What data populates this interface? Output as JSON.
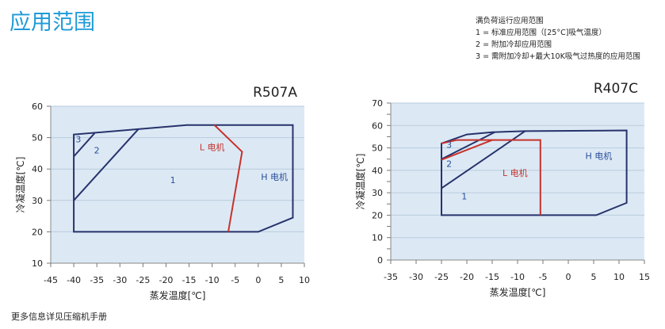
{
  "page": {
    "title": "应用范围",
    "legend_title": "满负荷运行应用范围",
    "legend_items": [
      "1 = 标准应用范围（[25°C]吸气温度）",
      "2 = 附加冷却应用范围",
      "3 = 需附加冷却+最大10K吸气过热度的应用范围"
    ],
    "footer": "更多信息详见压缩机手册"
  },
  "colors": {
    "plot_bg": "#dce9f5",
    "envelope": "#27336b",
    "l_motor": "#c8322b",
    "label_blue": "#2b4f9a",
    "title": "#1f9ad8"
  },
  "chart_data": [
    {
      "type": "line",
      "title": "R507A",
      "xlabel": "蒸发温度[℃]",
      "ylabel": "冷凝温度[℃]",
      "xlim": [
        -45,
        10
      ],
      "ylim": [
        10,
        60
      ],
      "xticks": [
        -45,
        -40,
        -35,
        -30,
        -25,
        -20,
        -15,
        -10,
        -5,
        0,
        5,
        10
      ],
      "yticks": [
        10,
        20,
        30,
        40,
        50,
        60
      ],
      "grid": true,
      "series": [
        {
          "name": "H 电机",
          "color": "envelope",
          "closed": true,
          "points": [
            [
              -40,
              20
            ],
            [
              -40,
              51
            ],
            [
              -26,
              52.7
            ],
            [
              -15.5,
              54
            ],
            [
              7.5,
              54
            ],
            [
              7.5,
              24.5
            ],
            [
              0,
              20
            ]
          ]
        },
        {
          "color": "envelope",
          "points": [
            [
              -40,
              44
            ],
            [
              -35.5,
              51.4
            ]
          ]
        },
        {
          "color": "envelope",
          "points": [
            [
              -40,
              30
            ],
            [
              -26,
              52.7
            ]
          ]
        },
        {
          "name": "L 电机",
          "color": "l_motor",
          "points": [
            [
              -9.5,
              54
            ],
            [
              -3.5,
              45.5
            ],
            [
              -6.5,
              20
            ]
          ]
        }
      ],
      "annotations": [
        {
          "text": "3",
          "x": -39,
          "y": 48.5,
          "color": "label_blue"
        },
        {
          "text": "2",
          "x": -35,
          "y": 45,
          "color": "label_blue"
        },
        {
          "text": "1",
          "x": -18.5,
          "y": 35.5,
          "color": "label_blue"
        },
        {
          "text": "L 电机",
          "x": -10,
          "y": 46,
          "color": "l_motor"
        },
        {
          "text": "H 电机",
          "x": 3.5,
          "y": 36.5,
          "color": "label_blue"
        }
      ]
    },
    {
      "type": "line",
      "title": "R407C",
      "xlabel": "蒸发温度[℃]",
      "ylabel": "冷凝温度[℃]",
      "xlim": [
        -35,
        15
      ],
      "ylim": [
        0,
        70
      ],
      "xticks": [
        -35,
        -30,
        -25,
        -20,
        -15,
        -10,
        -5,
        0,
        5,
        10,
        15
      ],
      "yticks": [
        0,
        10,
        20,
        30,
        40,
        50,
        60,
        70
      ],
      "grid": true,
      "series": [
        {
          "name": "H 电机",
          "color": "envelope",
          "closed": true,
          "points": [
            [
              -25,
              20
            ],
            [
              -25,
              52
            ],
            [
              -20,
              56
            ],
            [
              -15,
              57
            ],
            [
              -8.5,
              57.5
            ],
            [
              11.5,
              57.8
            ],
            [
              11.5,
              25.5
            ],
            [
              5.5,
              20
            ]
          ]
        },
        {
          "color": "envelope",
          "points": [
            [
              -25,
              45
            ],
            [
              -14.5,
              57
            ]
          ]
        },
        {
          "color": "envelope",
          "points": [
            [
              -25,
              32
            ],
            [
              -8.5,
              57.5
            ]
          ]
        },
        {
          "name": "L 电机",
          "color": "l_motor",
          "points": [
            [
              -25,
              52
            ],
            [
              -22,
              53.5
            ],
            [
              -5.5,
              53.5
            ],
            [
              -5.5,
              20
            ]
          ]
        },
        {
          "color": "l_motor",
          "points": [
            [
              -25,
              44.7
            ],
            [
              -15,
              53.5
            ]
          ]
        }
      ],
      "annotations": [
        {
          "text": "3",
          "x": -23.5,
          "y": 50,
          "color": "label_blue"
        },
        {
          "text": "2",
          "x": -23.5,
          "y": 41.5,
          "color": "label_blue"
        },
        {
          "text": "1",
          "x": -20.5,
          "y": 27,
          "color": "label_blue"
        },
        {
          "text": "L 电机",
          "x": -10.5,
          "y": 37.5,
          "color": "l_motor"
        },
        {
          "text": "H 电机",
          "x": 6,
          "y": 45,
          "color": "label_blue"
        }
      ]
    }
  ]
}
